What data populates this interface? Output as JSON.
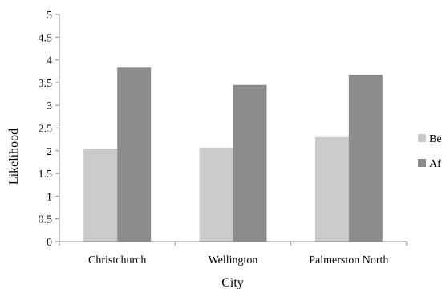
{
  "chart_data": {
    "type": "bar",
    "categories": [
      "Christchurch",
      "Wellington",
      "Palmerston North"
    ],
    "series": [
      {
        "name": "Be",
        "values": [
          2.05,
          2.07,
          2.3
        ],
        "color": "#cbcbcb"
      },
      {
        "name": "Af",
        "values": [
          3.83,
          3.45,
          3.67
        ],
        "color": "#8c8c8c"
      }
    ],
    "yticks": [
      "0",
      "0.5",
      "1",
      "1.5",
      "2",
      "2.5",
      "3",
      "3.5",
      "4",
      "4.5",
      "5"
    ],
    "ylim": [
      0,
      5
    ],
    "ylabel": "Likelihood",
    "xlabel": "City",
    "title": "",
    "legend_position": "right",
    "grid": false
  }
}
